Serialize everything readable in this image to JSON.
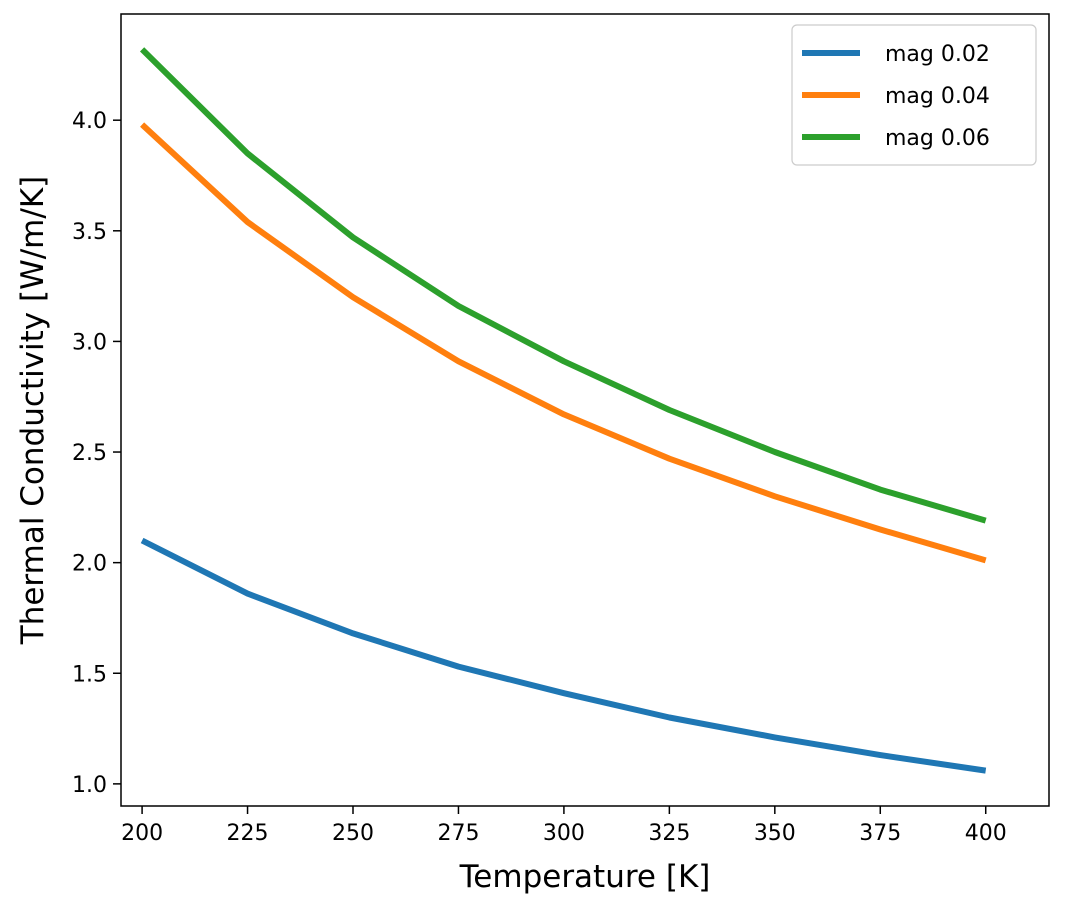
{
  "chart_data": {
    "type": "line",
    "title": "",
    "xlabel": "Temperature [K]",
    "ylabel": "Thermal Conductivity [W/m/K]",
    "x": [
      200,
      225,
      250,
      275,
      300,
      325,
      350,
      375,
      400
    ],
    "xlim": [
      195,
      415
    ],
    "ylim": [
      0.9,
      4.48
    ],
    "xticks": [
      200,
      225,
      250,
      275,
      300,
      325,
      350,
      375,
      400
    ],
    "xtick_labels": [
      "200",
      "225",
      "250",
      "275",
      "300",
      "325",
      "350",
      "375",
      "400"
    ],
    "yticks": [
      1.0,
      1.5,
      2.0,
      2.5,
      3.0,
      3.5,
      4.0
    ],
    "ytick_labels": [
      "1.0",
      "1.5",
      "2.0",
      "2.5",
      "3.0",
      "3.5",
      "4.0"
    ],
    "grid": false,
    "legend_position": "top-right",
    "series": [
      {
        "name": "mag 0.02",
        "color": "#1f77b4",
        "values": [
          2.1,
          1.86,
          1.68,
          1.53,
          1.41,
          1.3,
          1.21,
          1.13,
          1.06
        ]
      },
      {
        "name": "mag 0.04",
        "color": "#ff7f0e",
        "values": [
          3.98,
          3.54,
          3.2,
          2.91,
          2.67,
          2.47,
          2.3,
          2.15,
          2.01
        ]
      },
      {
        "name": "mag 0.06",
        "color": "#2ca02c",
        "values": [
          4.32,
          3.85,
          3.47,
          3.16,
          2.91,
          2.69,
          2.5,
          2.33,
          2.19
        ]
      }
    ]
  }
}
